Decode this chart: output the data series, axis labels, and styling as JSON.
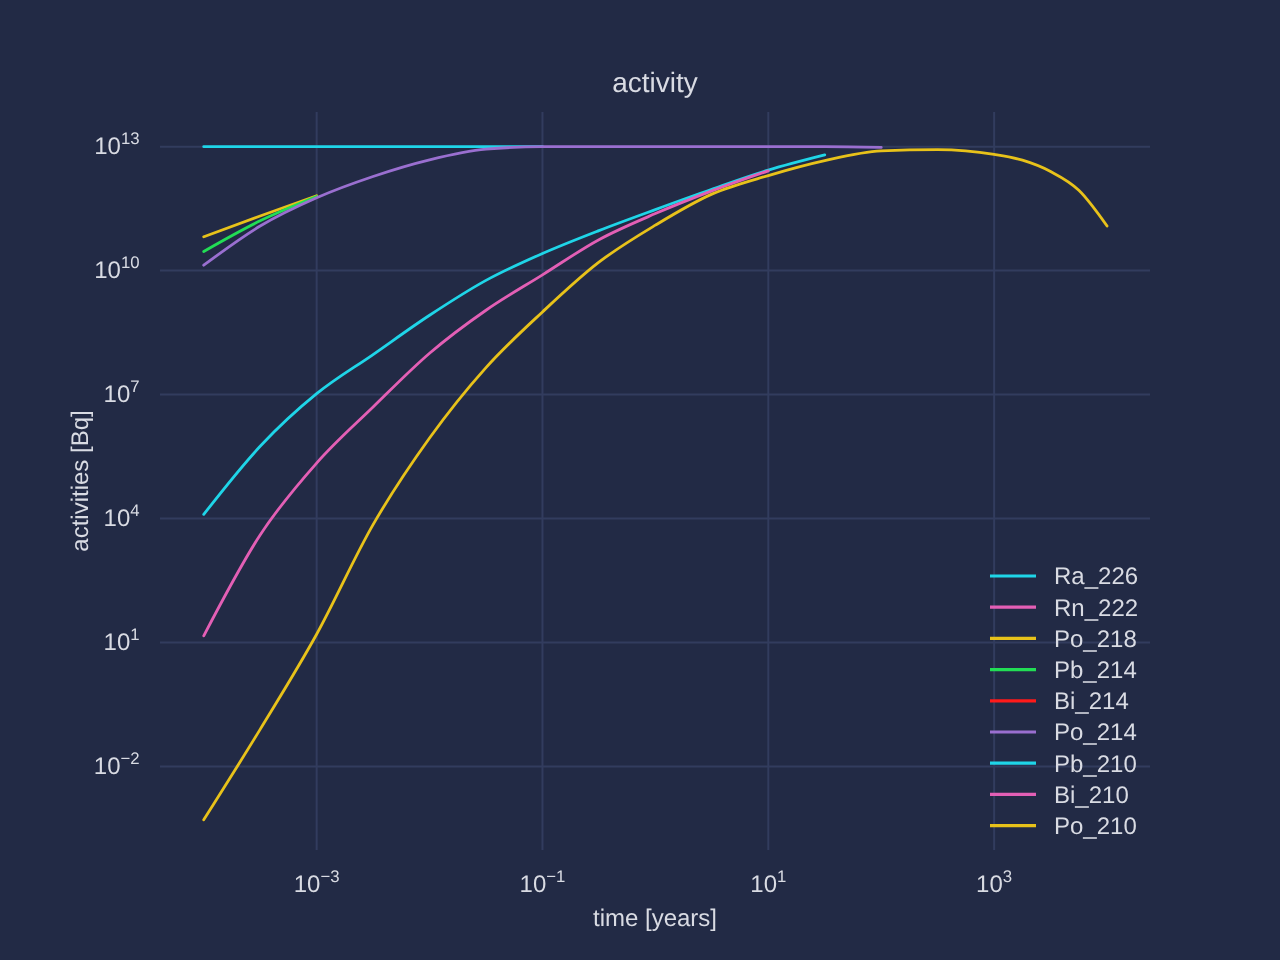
{
  "chart_data": {
    "type": "line",
    "title": "activity",
    "xlabel": "time [years]",
    "ylabel": "activities [Bq]",
    "log": "xy",
    "grid": true,
    "legend": "bottom right",
    "x": [
      0.0001,
      0.000316,
      0.001,
      0.00316,
      0.01,
      0.0316,
      0.1,
      0.316,
      1,
      3.16,
      10,
      31.6,
      100,
      316,
      1000,
      1780,
      3160,
      5620,
      10000
    ],
    "xlim": [
      4.1e-05,
      24000.0
    ],
    "ylim": [
      9.5e-05,
      69000000000000.0
    ],
    "xticks": [
      {
        "value": 0.001,
        "label": "10$^{−3}$"
      },
      {
        "value": 0.1,
        "label": "10$^{−1}$"
      },
      {
        "value": 10,
        "label": "10$^{1}$"
      },
      {
        "value": 1000,
        "label": "10$^{3}$"
      }
    ],
    "yticks": [
      {
        "value": 0.01,
        "label": "10$^{−2}$"
      },
      {
        "value": 10,
        "label": "10$^{1}$"
      },
      {
        "value": 10000,
        "label": "10$^{4}$"
      },
      {
        "value": 10000000.0,
        "label": "10$^{7}$"
      },
      {
        "value": 10000000000.0,
        "label": "10$^{10}$"
      },
      {
        "value": 10000000000000.0,
        "label": "10$^{13}$"
      }
    ],
    "series": [
      {
        "name": "Ra_226",
        "color": "#1fd5e8",
        "values": [
          10000000000000.0,
          10000000000000.0,
          10000000000000.0,
          10000000000000.0,
          10000000000000.0,
          10000000000000.0,
          10000000000000.0,
          null,
          null,
          null,
          null,
          null,
          null,
          null,
          null,
          null,
          null,
          null,
          null
        ]
      },
      {
        "name": "Rn_222",
        "color": "#e35fb5",
        "values": [
          null,
          null,
          null,
          null,
          null,
          null,
          null,
          null,
          null,
          null,
          null,
          null,
          null,
          null,
          null,
          null,
          null,
          null,
          null
        ]
      },
      {
        "name": "Po_218",
        "color": "#e8c21a",
        "values": [
          66000000000.0,
          210000000000.0,
          650000000000.0,
          null,
          null,
          null,
          null,
          null,
          null,
          null,
          null,
          null,
          null,
          null,
          null,
          null,
          null,
          null,
          null
        ]
      },
      {
        "name": "Pb_214",
        "color": "#22dd55",
        "values": [
          29000000000.0,
          160000000000.0,
          620000000000.0,
          null,
          null,
          null,
          null,
          null,
          null,
          null,
          null,
          null,
          null,
          null,
          null,
          null,
          null,
          null,
          null
        ]
      },
      {
        "name": "Bi_214",
        "color": "#ff1a1a",
        "values": [
          null,
          null,
          null,
          null,
          null,
          null,
          null,
          null,
          null,
          null,
          null,
          null,
          null,
          null,
          null,
          null,
          null,
          null,
          null
        ]
      },
      {
        "name": "Po_214",
        "color": "#9a6fd0",
        "values": [
          13500000000.0,
          120000000000.0,
          580000000000.0,
          1900000000000.0,
          4800000000000.0,
          8700000000000.0,
          10000000000000.0,
          10000000000000.0,
          10000000000000.0,
          10000000000000.0,
          10000000000000.0,
          10000000000000.0,
          9600000000000.0,
          null,
          null,
          null,
          null,
          null,
          null
        ]
      },
      {
        "name": "Pb_210",
        "color": "#1fd5e8",
        "values": [
          12600.0,
          560000.0,
          10500000.0,
          93000000.0,
          830000000.0,
          5800000000.0,
          26000000000.0,
          93000000000.0,
          300000000000.0,
          930000000000.0,
          2700000000000.0,
          6300000000000.0,
          null,
          null,
          null,
          null,
          null,
          null,
          null
        ]
      },
      {
        "name": "Bi_210",
        "color": "#e35fb5",
        "values": [
          14.5,
          4000.0,
          220000.0,
          5000000.0,
          100000000.0,
          1100000000.0,
          7900000000.0,
          56000000000.0,
          240000000000.0,
          850000000000.0,
          2600000000000.0,
          null,
          null,
          null,
          null,
          null,
          null,
          null,
          null
        ]
      },
      {
        "name": "Po_210",
        "color": "#e8c21a",
        "values": [
          0.00051,
          0.079,
          15.8,
          7100.0,
          890000.0,
          45000000.0,
          1000000000.0,
          16000000000.0,
          126000000000.0,
          710000000000.0,
          2000000000000.0,
          4600000000000.0,
          7900000000000.0,
          8500000000000.0,
          6500000000000.0,
          4700000000000.0,
          2500000000000.0,
          880000000000.0,
          120000000000.0
        ]
      }
    ]
  }
}
